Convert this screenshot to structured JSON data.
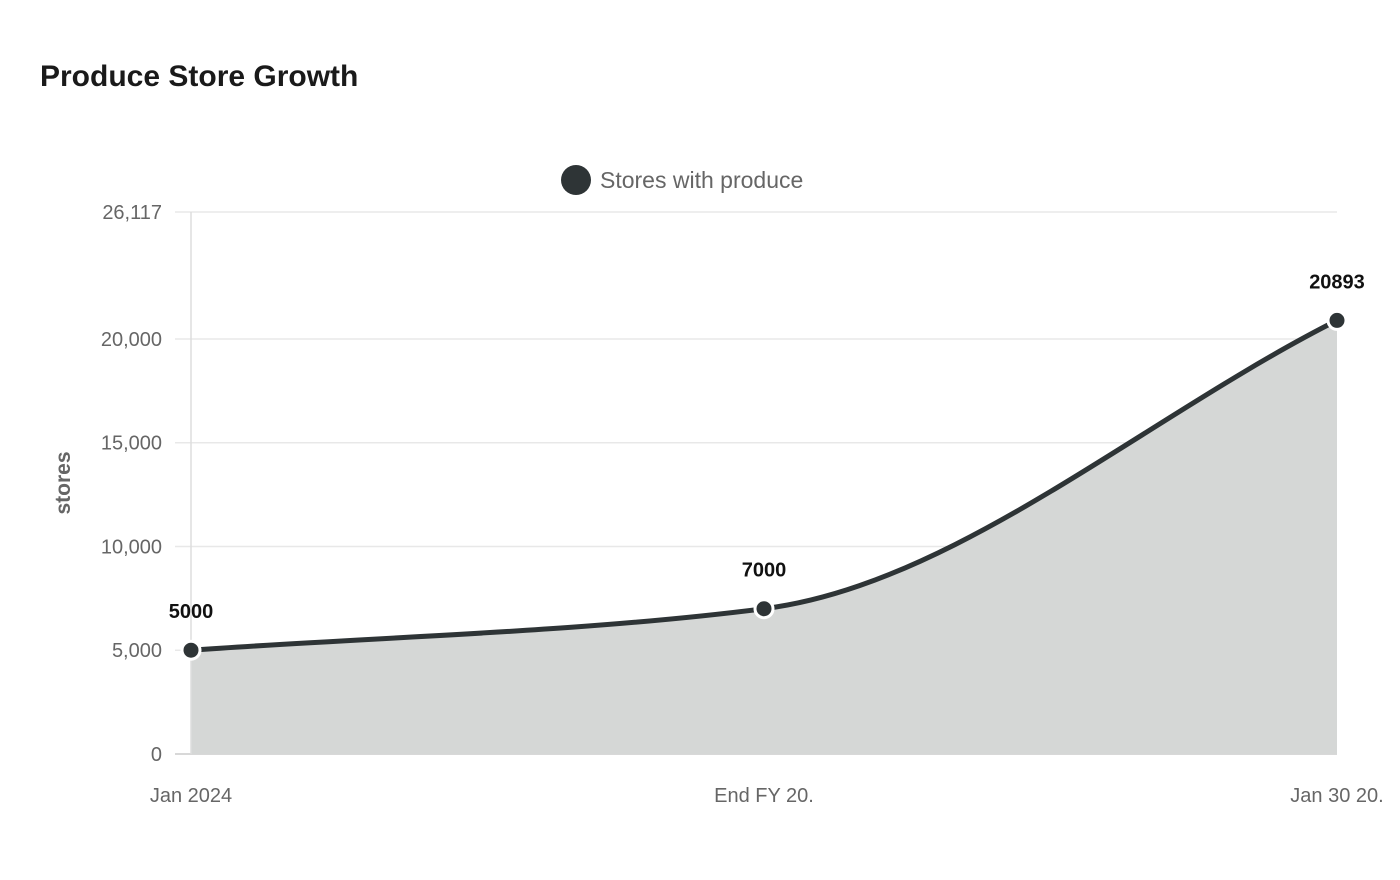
{
  "title": "Produce Store Growth",
  "chart_data": {
    "type": "area",
    "title": "Produce Store Growth",
    "xlabel": "",
    "ylabel": "stores",
    "categories": [
      "Jan 2024",
      "End FY 20.",
      "Jan 30 20."
    ],
    "series": [
      {
        "name": "Stores with produce",
        "values": [
          5000,
          7000,
          20893
        ]
      }
    ],
    "ylim": [
      0,
      26117
    ],
    "yticks": [
      0,
      5000,
      10000,
      15000,
      20000,
      26117
    ],
    "ytick_labels": [
      "0",
      "5,000",
      "10,000",
      "15,000",
      "20,000",
      "26,117"
    ],
    "data_labels": [
      "5000",
      "7000",
      "20893"
    ],
    "grid": true,
    "legend_position": "top-center",
    "colors": {
      "line": "#2e3436",
      "area": "#d5d7d6",
      "grid": "#e8e8e8"
    }
  }
}
